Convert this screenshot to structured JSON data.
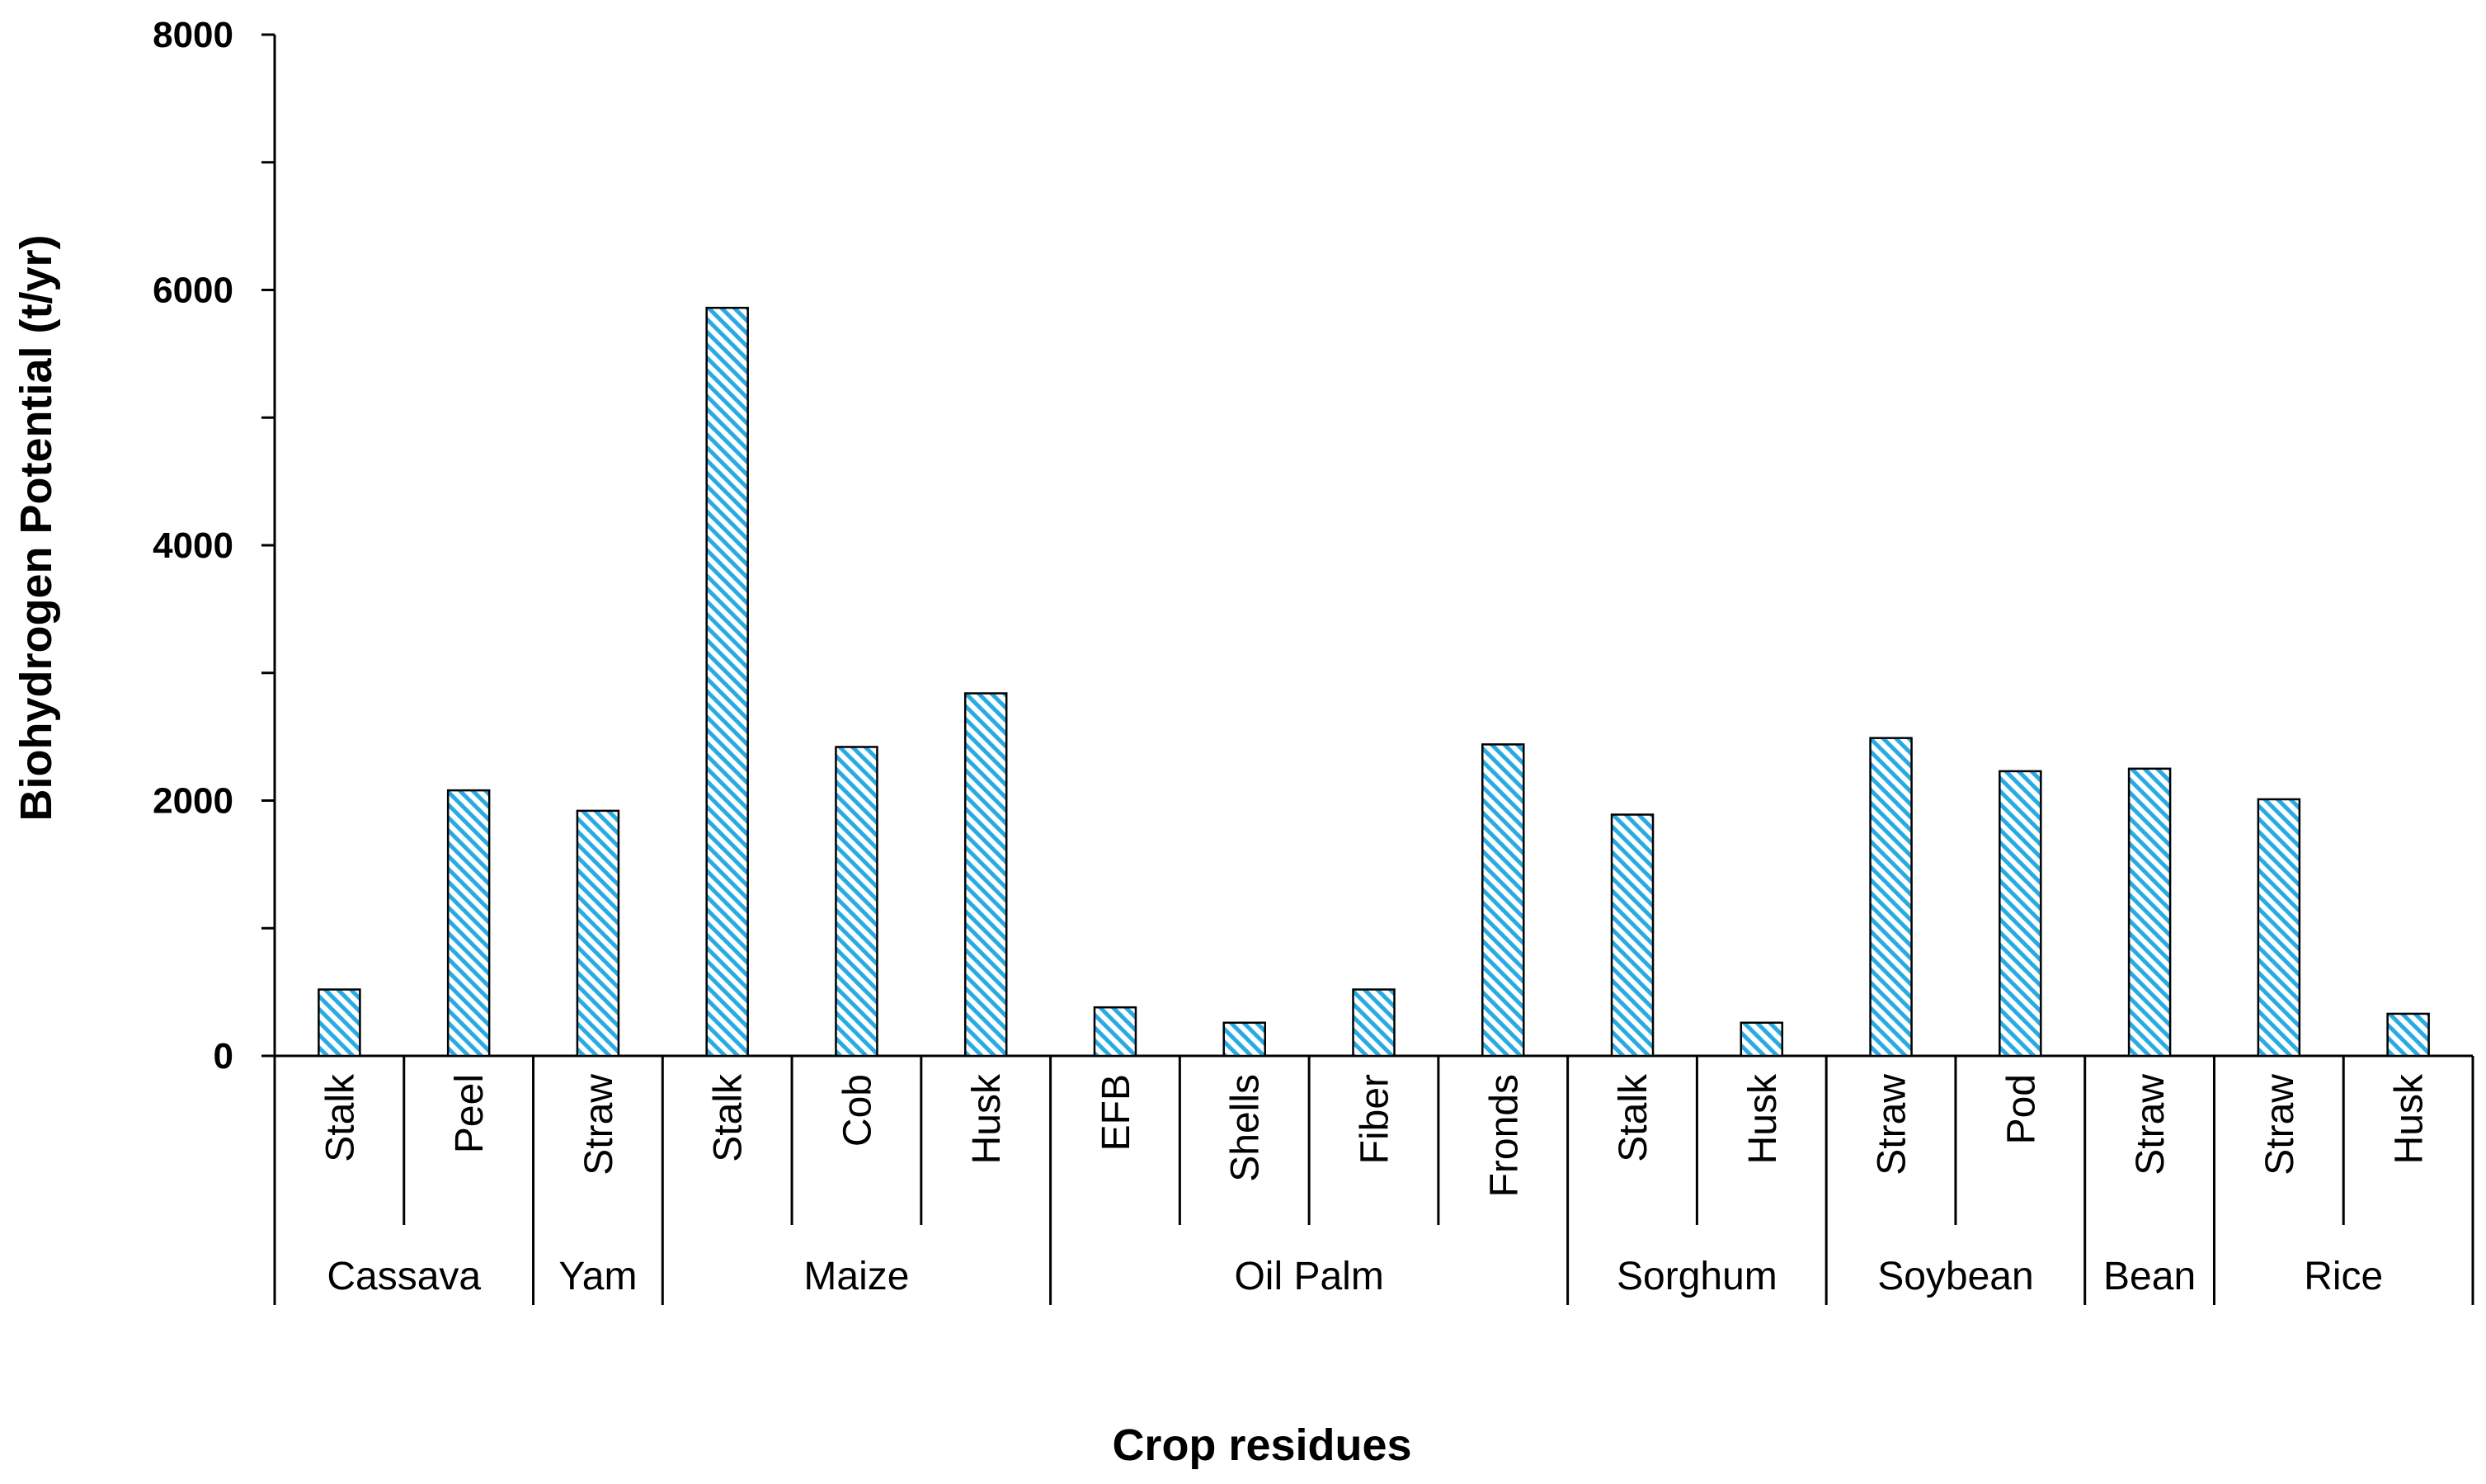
{
  "chart_data": {
    "type": "bar",
    "ylabel": "Biohydrogen Potential (t/yr)",
    "xlabel": "Crop residues",
    "ylim": [
      0,
      8000
    ],
    "yticks": [
      0,
      2000,
      4000,
      6000,
      8000
    ],
    "grid": false,
    "legend": "none",
    "bar_color": "#29abe2",
    "bar_pattern": "diagonal-hatch",
    "groups": [
      {
        "name": "Cassava",
        "size": 2
      },
      {
        "name": "Yam",
        "size": 1
      },
      {
        "name": "Maize",
        "size": 3
      },
      {
        "name": "Oil Palm",
        "size": 4
      },
      {
        "name": "Sorghum",
        "size": 2
      },
      {
        "name": "Soybean",
        "size": 2
      },
      {
        "name": "Bean",
        "size": 1
      },
      {
        "name": "Rice",
        "size": 2
      }
    ],
    "categories": [
      "Stalk",
      "Peel",
      "Straw",
      "Stalk",
      "Cob",
      "Husk",
      "EFB",
      "Shells",
      "Fiber",
      "Fronds",
      "Stalk",
      "Husk",
      "Straw",
      "Pod",
      "Straw",
      "Straw",
      "Husk"
    ],
    "values": [
      520,
      2080,
      1920,
      5860,
      2420,
      2840,
      380,
      260,
      520,
      2440,
      1890,
      260,
      2490,
      2230,
      2250,
      2010,
      330
    ]
  }
}
